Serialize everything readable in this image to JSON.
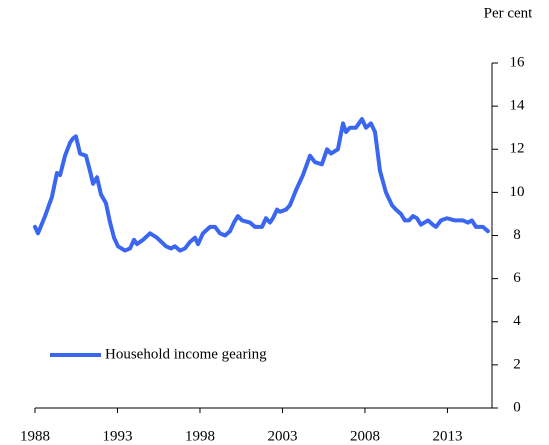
{
  "chart_data": {
    "type": "line",
    "y_axis_label": "Per cent",
    "x": [
      1988.0,
      1988.18,
      1988.61,
      1989.03,
      1989.33,
      1989.52,
      1989.82,
      1990.12,
      1990.3,
      1990.48,
      1990.73,
      1991.09,
      1991.33,
      1991.52,
      1991.76,
      1992.0,
      1992.3,
      1992.55,
      1992.79,
      1993.03,
      1993.45,
      1993.76,
      1994.0,
      1994.18,
      1994.55,
      1994.97,
      1995.39,
      1995.94,
      1996.24,
      1996.48,
      1996.79,
      1997.09,
      1997.39,
      1997.7,
      1997.88,
      1998.18,
      1998.61,
      1998.91,
      1999.21,
      1999.52,
      1999.82,
      2000.06,
      2000.3,
      2000.55,
      2001.03,
      2001.33,
      2001.76,
      2002.0,
      2002.24,
      2002.42,
      2002.67,
      2002.85,
      2003.21,
      2003.45,
      2003.82,
      2004.24,
      2004.67,
      2004.97,
      2005.39,
      2005.7,
      2005.94,
      2006.36,
      2006.67,
      2006.85,
      2007.09,
      2007.45,
      2007.82,
      2008.06,
      2008.36,
      2008.61,
      2008.91,
      2009.27,
      2009.64,
      2009.88,
      2010.18,
      2010.42,
      2010.67,
      2010.91,
      2011.15,
      2011.39,
      2011.82,
      2012.12,
      2012.3,
      2012.61,
      2012.97,
      2013.45,
      2013.94,
      2014.24,
      2014.48,
      2014.73,
      2015.15,
      2015.45
    ],
    "series": [
      {
        "name": "Household income gearing",
        "color": "#3a66f0",
        "values": [
          8.4,
          8.1,
          8.9,
          9.8,
          10.9,
          10.8,
          11.7,
          12.3,
          12.5,
          12.6,
          11.8,
          11.7,
          11.0,
          10.4,
          10.7,
          9.9,
          9.5,
          8.6,
          7.9,
          7.5,
          7.3,
          7.4,
          7.8,
          7.6,
          7.8,
          8.1,
          7.9,
          7.5,
          7.4,
          7.5,
          7.3,
          7.4,
          7.7,
          7.9,
          7.6,
          8.1,
          8.4,
          8.4,
          8.1,
          8.0,
          8.2,
          8.6,
          8.9,
          8.7,
          8.6,
          8.4,
          8.4,
          8.8,
          8.6,
          8.8,
          9.2,
          9.1,
          9.2,
          9.4,
          10.1,
          10.8,
          11.7,
          11.4,
          11.3,
          12.0,
          11.8,
          12.0,
          13.2,
          12.8,
          13.0,
          13.0,
          13.4,
          13.0,
          13.2,
          12.8,
          11.0,
          10.0,
          9.4,
          9.2,
          9.0,
          8.7,
          8.7,
          8.9,
          8.8,
          8.5,
          8.7,
          8.5,
          8.4,
          8.7,
          8.8,
          8.7,
          8.7,
          8.6,
          8.7,
          8.4,
          8.4,
          8.2
        ]
      }
    ],
    "xlim": [
      1988,
      2015.7
    ],
    "xticks": [
      1988,
      1993,
      1998,
      2003,
      2008,
      2013
    ],
    "ylim": [
      0,
      16
    ],
    "yticks": [
      0,
      2,
      4,
      6,
      8,
      10,
      12,
      14,
      16
    ],
    "legend": "lower left",
    "grid": false
  }
}
